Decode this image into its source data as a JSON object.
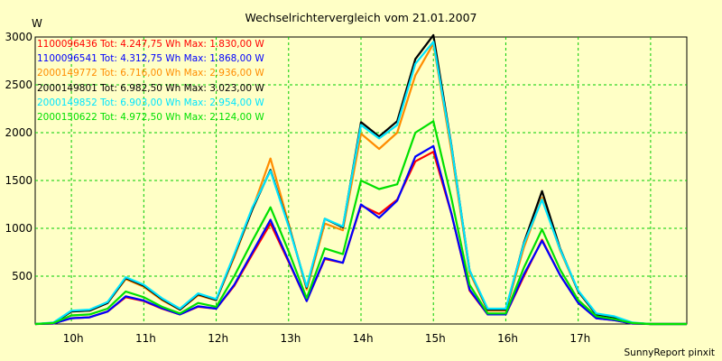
{
  "footer": "SunnyReport pinxit",
  "chart_data": {
    "type": "line",
    "title": "Wechselrichtervergleich vom 21.01.2007",
    "ylabel": "W",
    "xlabel": "",
    "ylim": [
      0,
      3000
    ],
    "xlim": [
      9.0,
      18.0
    ],
    "y_ticks": [
      500,
      1000,
      1500,
      2000,
      2500,
      3000
    ],
    "x_ticks": [
      {
        "value": 9.5,
        "label": "10h"
      },
      {
        "value": 10.5,
        "label": "11h"
      },
      {
        "value": 11.5,
        "label": "12h"
      },
      {
        "value": 12.5,
        "label": "13h"
      },
      {
        "value": 13.5,
        "label": "14h"
      },
      {
        "value": 14.5,
        "label": "15h"
      },
      {
        "value": 15.5,
        "label": "16h"
      },
      {
        "value": 16.5,
        "label": "17h"
      }
    ],
    "grid": true,
    "legend_position": "top-left",
    "x": [
      9.0,
      9.25,
      9.5,
      9.75,
      10.0,
      10.25,
      10.5,
      10.75,
      11.0,
      11.25,
      11.5,
      11.75,
      12.0,
      12.25,
      12.5,
      12.75,
      13.0,
      13.25,
      13.5,
      13.75,
      14.0,
      14.25,
      14.5,
      14.75,
      15.0,
      15.25,
      15.5,
      15.75,
      16.0,
      16.25,
      16.5,
      16.75,
      17.0,
      17.25,
      17.5,
      17.75,
      18.0
    ],
    "series": [
      {
        "name": "1100096436",
        "legend_text": "1100096436 Tot: 4.247,75 Wh Max: 1.830,00 W",
        "color": "#ff0000",
        "values": [
          0,
          5,
          60,
          70,
          130,
          280,
          240,
          160,
          100,
          180,
          160,
          400,
          730,
          1050,
          650,
          240,
          680,
          640,
          1240,
          1150,
          1300,
          1700,
          1800,
          1150,
          350,
          100,
          100,
          500,
          880,
          510,
          220,
          60,
          40,
          5,
          0,
          0,
          0
        ]
      },
      {
        "name": "1100096541",
        "legend_text": "1100096541 Tot: 4.312,75 Wh Max: 1.868,00 W",
        "color": "#0000ff",
        "values": [
          0,
          5,
          60,
          70,
          130,
          290,
          245,
          165,
          100,
          185,
          160,
          410,
          750,
          1090,
          660,
          240,
          690,
          640,
          1250,
          1110,
          1290,
          1750,
          1860,
          1150,
          360,
          100,
          100,
          520,
          870,
          510,
          220,
          60,
          40,
          5,
          0,
          0,
          0
        ]
      },
      {
        "name": "2000149772",
        "legend_text": "2000149772 Tot: 6.716,00 Wh Max: 2.936,00 W",
        "color": "#ff8c00",
        "values": [
          0,
          10,
          130,
          140,
          220,
          470,
          390,
          250,
          150,
          300,
          250,
          700,
          1200,
          1730,
          1050,
          360,
          1050,
          980,
          1990,
          1830,
          2000,
          2600,
          2930,
          1800,
          540,
          140,
          140,
          800,
          1320,
          770,
          340,
          100,
          70,
          10,
          0,
          0,
          0
        ]
      },
      {
        "name": "2000149801",
        "legend_text": "2000149801 Tot: 6.982,50 Wh Max: 3.023,00 W",
        "color": "#000000",
        "values": [
          0,
          10,
          130,
          140,
          220,
          480,
          400,
          260,
          150,
          310,
          250,
          720,
          1200,
          1610,
          1030,
          380,
          1100,
          1010,
          2110,
          1960,
          2120,
          2770,
          3020,
          1860,
          560,
          150,
          150,
          850,
          1390,
          790,
          340,
          100,
          70,
          10,
          0,
          0,
          0
        ]
      },
      {
        "name": "2000149852",
        "legend_text": "2000149852 Tot: 6.903,00 Wh Max: 2.954,00 W",
        "color": "#00e5ff",
        "values": [
          0,
          15,
          140,
          150,
          230,
          490,
          410,
          270,
          160,
          320,
          260,
          730,
          1220,
          1600,
          1020,
          390,
          1100,
          1020,
          2080,
          1940,
          2080,
          2720,
          2950,
          1850,
          560,
          160,
          160,
          840,
          1300,
          780,
          350,
          110,
          80,
          15,
          0,
          0,
          0
        ]
      },
      {
        "name": "2000150622",
        "legend_text": "2000150622 Tot: 4.972,50 Wh Max: 2.124,00 W",
        "color": "#00e000",
        "values": [
          0,
          10,
          90,
          100,
          160,
          340,
          280,
          180,
          110,
          220,
          180,
          500,
          870,
          1220,
          760,
          270,
          790,
          730,
          1500,
          1410,
          1460,
          2000,
          2120,
          1310,
          410,
          110,
          110,
          590,
          990,
          570,
          250,
          80,
          50,
          10,
          0,
          0,
          0
        ]
      }
    ]
  }
}
